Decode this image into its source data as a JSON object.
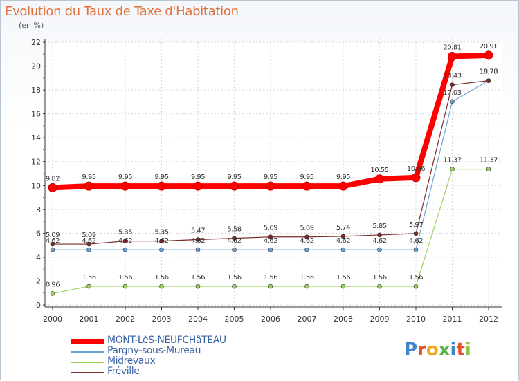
{
  "chart_data": {
    "type": "line",
    "title": "Evolution du Taux de Taxe d'Habitation",
    "unit_label": "(en %)",
    "x": [
      "2000",
      "2001",
      "2002",
      "2003",
      "2004",
      "2005",
      "2006",
      "2007",
      "2008",
      "2009",
      "2010",
      "2011",
      "2012"
    ],
    "ylim": [
      0,
      22
    ],
    "y_ticks": [
      0,
      2,
      4,
      6,
      8,
      10,
      12,
      14,
      16,
      18,
      20,
      22
    ],
    "grid": true,
    "legend_position": "bottom-left",
    "series": [
      {
        "name": "MONT-LèS-NEUFCHâTEAU",
        "color": "#ff0000",
        "width": 8,
        "values": [
          9.82,
          9.95,
          9.95,
          9.95,
          9.95,
          9.95,
          9.95,
          9.95,
          9.95,
          10.55,
          10.66,
          20.81,
          20.91
        ],
        "labels": [
          "9.82",
          "9.95",
          "9.95",
          "9.95",
          "9.95",
          "9.95",
          "9.95",
          "9.95",
          "9.95",
          "10.55",
          "10.66",
          "20.81",
          "20.91"
        ]
      },
      {
        "name": "Pargny-sous-Mureau",
        "color": "#6a9fd4",
        "width": 1.2,
        "values": [
          4.62,
          4.62,
          4.62,
          4.62,
          4.62,
          4.62,
          4.62,
          4.62,
          4.62,
          4.62,
          4.62,
          17.03,
          18.78
        ],
        "labels": [
          "4.62",
          "4.62",
          "4.62",
          "4.62",
          "4.62",
          "4.62",
          "4.62",
          "4.62",
          "4.62",
          "4.62",
          "4.62",
          "17.03",
          "18.78"
        ]
      },
      {
        "name": "Midrevaux",
        "color": "#9ad35a",
        "width": 1.2,
        "values": [
          0.96,
          1.56,
          1.56,
          1.56,
          1.56,
          1.56,
          1.56,
          1.56,
          1.56,
          1.56,
          1.56,
          11.37,
          11.37
        ],
        "labels": [
          "0.96",
          "1.56",
          "1.56",
          "1.56",
          "1.56",
          "1.56",
          "1.56",
          "1.56",
          "1.56",
          "1.56",
          "1.56",
          "11.37",
          "11.37"
        ]
      },
      {
        "name": "Fréville",
        "color": "#7a2a2a",
        "width": 1.2,
        "values": [
          5.09,
          5.09,
          5.35,
          5.35,
          5.47,
          5.58,
          5.69,
          5.69,
          5.74,
          5.85,
          5.97,
          18.43,
          18.78
        ],
        "labels": [
          "5.09",
          "5.09",
          "5.35",
          "5.35",
          "5.47",
          "5.58",
          "5.69",
          "5.69",
          "5.74",
          "5.85",
          "5.97",
          "18.43",
          "18.78"
        ]
      }
    ]
  },
  "logo": {
    "letters": [
      "P",
      "r",
      "o",
      "x",
      "i",
      "t",
      "i"
    ]
  }
}
